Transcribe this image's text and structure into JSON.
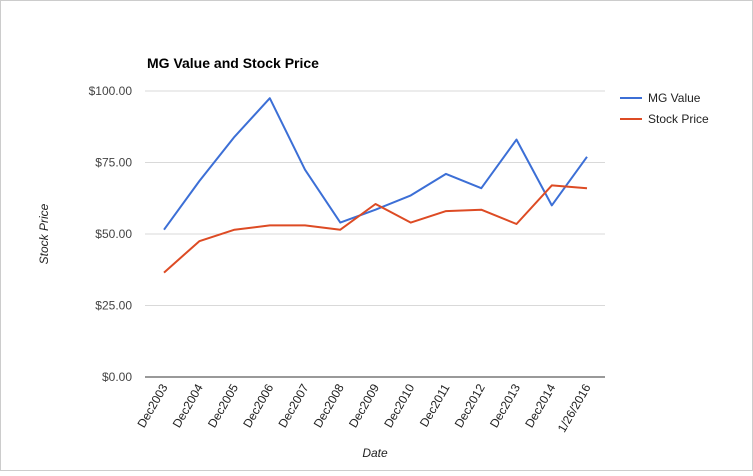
{
  "chart_data": {
    "type": "line",
    "title": "MG Value and Stock Price",
    "xlabel": "Date",
    "ylabel": "Stock Price",
    "categories": [
      "Dec2003",
      "Dec2004",
      "Dec2005",
      "Dec2006",
      "Dec2007",
      "Dec2008",
      "Dec2009",
      "Dec2010",
      "Dec2011",
      "Dec2012",
      "Dec2013",
      "Dec2014",
      "1/26/2016"
    ],
    "y_ticks": [
      "$0.00",
      "$25.00",
      "$50.00",
      "$75.00",
      "$100.00"
    ],
    "ylim": [
      0,
      100
    ],
    "grid": true,
    "legend_position": "right",
    "series": [
      {
        "name": "MG Value",
        "color": "#3c6fd6",
        "values": [
          51.5,
          68.5,
          84,
          97.5,
          72.5,
          54,
          58.5,
          63.5,
          71,
          66,
          83,
          60,
          77
        ]
      },
      {
        "name": "Stock Price",
        "color": "#dd4b24",
        "values": [
          36.5,
          47.5,
          51.5,
          53,
          53,
          51.5,
          60.5,
          54,
          58,
          58.5,
          53.5,
          67,
          66
        ]
      }
    ]
  }
}
